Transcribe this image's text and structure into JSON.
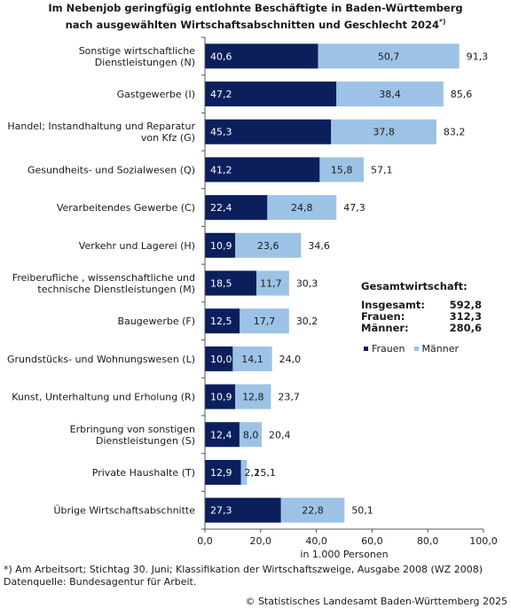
{
  "title_line1": "Im Nebenjob geringfügig entlohnte Beschäftigte in Baden-Württemberg",
  "title_line2": "nach ausgewählten Wirtschaftsabschnitten und Geschlecht 2024",
  "title_sup": "*)",
  "footnote_line1": "*) Am Arbeitsort; Stichtag 30. Juni; Klassifikation der Wirtschaftszweige, Ausgabe 2008 (WZ 2008)",
  "footnote_line2": "Datenquelle: Bundesagentur für Arbeit.",
  "copyright": "© Statistisches Landesamt Baden-Württemberg 2025",
  "totals": {
    "heading": "Gesamtwirtschaft:",
    "rows": [
      {
        "label": "Insgesamt:",
        "value": "592,8"
      },
      {
        "label": "Frauen:",
        "value": "312,3"
      },
      {
        "label": "Männer:",
        "value": "280,6"
      }
    ]
  },
  "colors": {
    "frauen": "#0b1f5c",
    "maenner": "#9cc3e6",
    "axis": "#555555",
    "grid": "#d9d9d9"
  },
  "chart_data": {
    "type": "bar",
    "orientation": "horizontal",
    "stacked": true,
    "categories": [
      "Sonstige wirtschaftliche\nDienstleistungen (N)",
      "Gastgewerbe (I)",
      "Handel; Instandhaltung und Reparatur\nvon Kfz (G)",
      "Gesundheits- und Sozialwesen (Q)",
      "Verarbeitendes Gewerbe (C)",
      "Verkehr und Lagerei (H)",
      "Freiberufliche , wissenschaftliche und\ntechnische Dienstleistungen (M)",
      "Baugewerbe (F)",
      "Grundstücks- und Wohnungswesen (L)",
      "Kunst, Unterhaltung und Erholung (R)",
      "Erbringung von sonstigen\nDienstleistungen (S)",
      "Private Haushalte (T)",
      "Übrige Wirtschaftsabschnitte"
    ],
    "series": [
      {
        "name": "Frauen",
        "values": [
          40.6,
          47.2,
          45.3,
          41.2,
          22.4,
          10.9,
          18.5,
          12.5,
          10.0,
          10.9,
          12.4,
          12.9,
          27.3
        ],
        "labels": [
          "40,6",
          "47,2",
          "45,3",
          "41,2",
          "22,4",
          "10,9",
          "18,5",
          "12,5",
          "10,0",
          "10,9",
          "12,4",
          "12,9",
          "27,3"
        ]
      },
      {
        "name": "Männer",
        "values": [
          50.7,
          38.4,
          37.8,
          15.8,
          24.8,
          23.6,
          11.7,
          17.7,
          14.1,
          12.8,
          8.0,
          2.2,
          22.8
        ],
        "labels": [
          "50,7",
          "38,4",
          "37,8",
          "15,8",
          "24,8",
          "23,6",
          "11,7",
          "17,7",
          "14,1",
          "12,8",
          "8,0",
          "2,2",
          "22,8"
        ]
      }
    ],
    "totals": [
      91.3,
      85.6,
      83.2,
      57.1,
      47.3,
      34.6,
      30.3,
      30.2,
      24.0,
      23.7,
      20.4,
      15.1,
      50.1
    ],
    "total_labels": [
      "91,3",
      "85,6",
      "83,2",
      "57,1",
      "47,3",
      "34,6",
      "30,3",
      "30,2",
      "24,0",
      "23,7",
      "20,4",
      "15,1",
      "50,1"
    ],
    "xlim": [
      0,
      100
    ],
    "xticks": [
      0,
      20,
      40,
      60,
      80,
      100
    ],
    "xtick_labels": [
      "0,0",
      "20,0",
      "40,0",
      "60,0",
      "80,0",
      "100,0"
    ],
    "xlabel": "in 1.000 Personen",
    "grid": false,
    "legend_position": "right-middle"
  }
}
